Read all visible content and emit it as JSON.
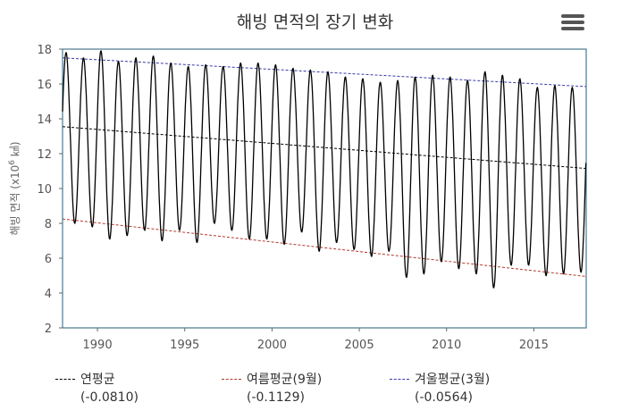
{
  "title": "해빙 면적의 장기 변화",
  "menu_icon": "hamburger-menu-icon",
  "chart_data": {
    "type": "line",
    "title": "해빙 면적의 장기 변화",
    "ylabel": "해빙 면적 (x10⁶ ㎢)",
    "ylabel_main": "해빙 면적 (x10",
    "ylabel_exp": "6",
    "ylabel_unit": " ㎢)",
    "xlabel": "",
    "xlim": [
      1988,
      2018
    ],
    "ylim": [
      2,
      18
    ],
    "x_ticks": [
      1990,
      1995,
      2000,
      2005,
      2010,
      2015
    ],
    "y_ticks": [
      2,
      4,
      6,
      8,
      10,
      12,
      14,
      16,
      18
    ],
    "grid": false,
    "frame_color": "#4a7a8c",
    "series": [
      {
        "name": "",
        "color": "#000000",
        "description_of_shape": "",
        "years": [
          1988,
          1989,
          1990,
          1991,
          1992,
          1993,
          1994,
          1995,
          1996,
          1997,
          1998,
          1999,
          2000,
          2001,
          2002,
          2003,
          2004,
          2005,
          2006,
          2007,
          2008,
          2009,
          2010,
          2011,
          2012,
          2013,
          2014,
          2015,
          2016,
          2017
        ],
        "march_max": [
          17.8,
          17.5,
          17.9,
          17.3,
          17.5,
          17.6,
          17.2,
          17.0,
          17.1,
          17.0,
          17.2,
          17.2,
          17.1,
          16.9,
          16.8,
          16.7,
          16.4,
          16.3,
          16.1,
          16.2,
          16.4,
          16.5,
          16.4,
          16.2,
          16.7,
          16.5,
          16.3,
          15.8,
          15.9,
          15.8
        ],
        "sept_min": [
          8.0,
          7.8,
          7.1,
          7.3,
          7.6,
          7.0,
          7.6,
          6.9,
          8.0,
          7.6,
          7.1,
          7.1,
          6.8,
          7.5,
          6.4,
          6.9,
          6.5,
          6.1,
          6.4,
          4.9,
          5.1,
          5.8,
          5.4,
          5.1,
          4.3,
          5.6,
          5.6,
          5.0,
          5.1,
          5.2
        ]
      },
      {
        "name": "연평균",
        "color": "#000000",
        "trend": [
          13.55,
          11.15
        ],
        "slope_label": "(-0.0810)"
      },
      {
        "name": "여름평균(9월)",
        "color": "#b03a2e",
        "trend": [
          8.25,
          4.95
        ],
        "slope_label": "(-0.1129)"
      },
      {
        "name": "겨울평균(3월)",
        "color": "#3a3aa8",
        "trend": [
          17.5,
          15.85
        ],
        "slope_label": "(-0.0564)"
      }
    ],
    "legend_placement": "bottom"
  },
  "legend": [
    {
      "label": "연평균",
      "value": "(-0.0810)",
      "color": "#000000"
    },
    {
      "label": "여름평균(9월)",
      "value": "(-0.1129)",
      "color": "#b03a2e"
    },
    {
      "label": "겨울평균(3월)",
      "value": "(-0.0564)",
      "color": "#3a3aa8"
    }
  ]
}
